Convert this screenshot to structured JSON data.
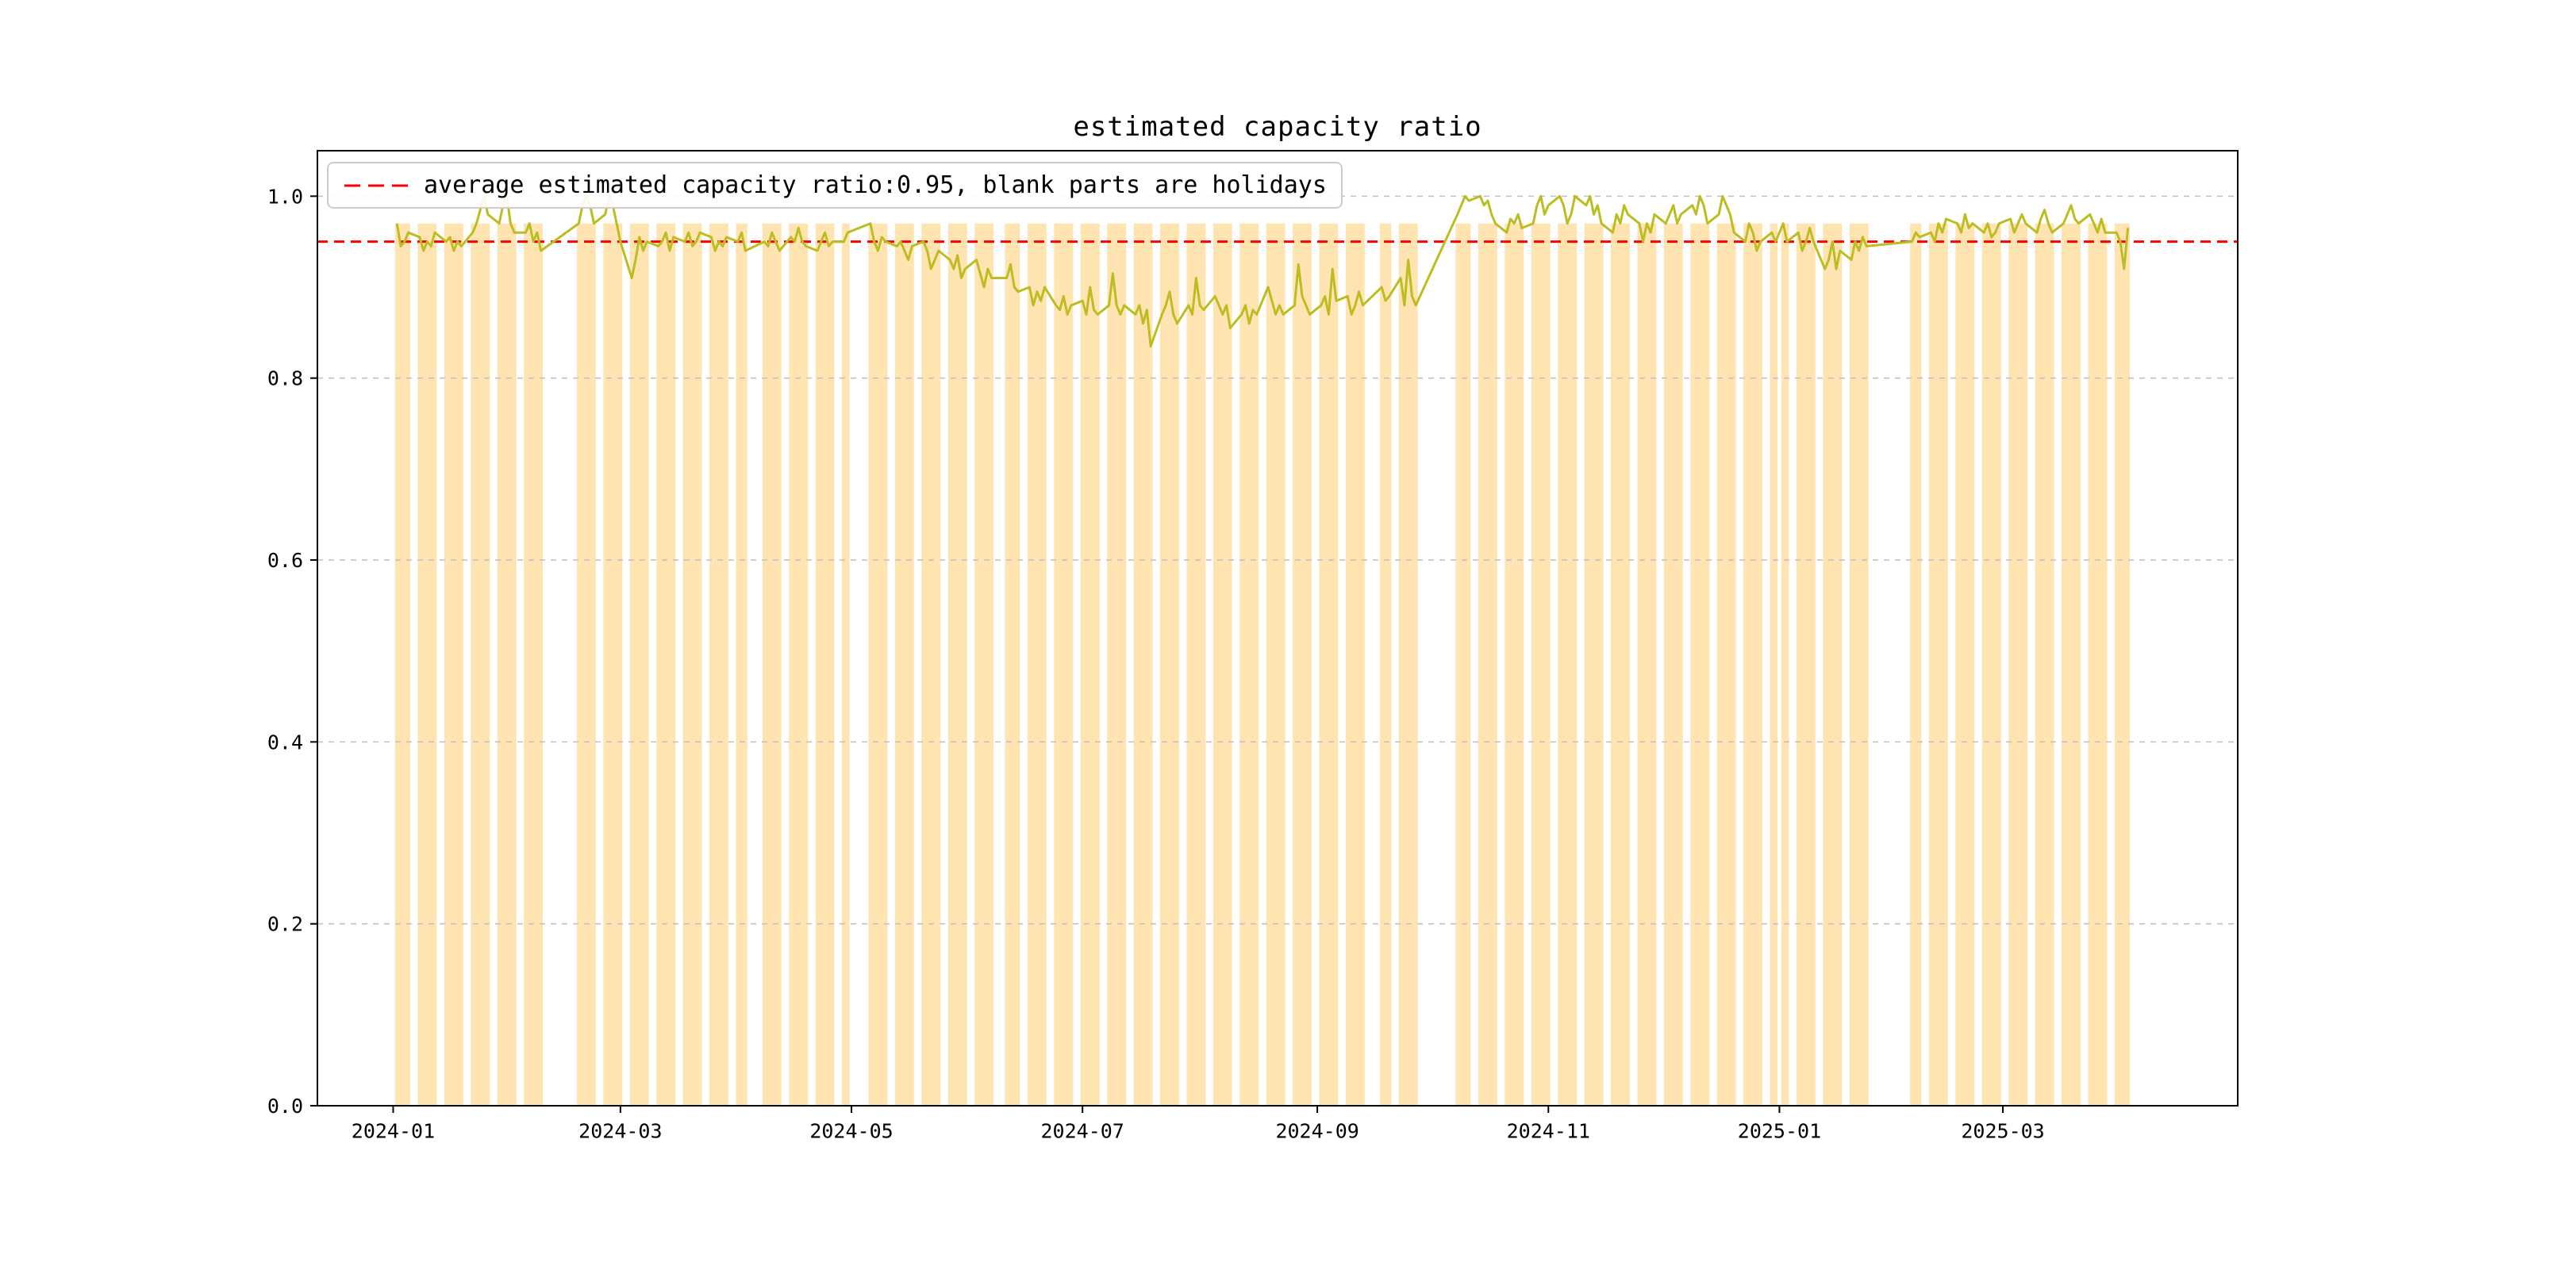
{
  "chart_data": {
    "type": "line",
    "title": "estimated capacity ratio",
    "legend_label": "average estimated capacity ratio:0.95, blank parts are holidays",
    "legend_position": "upper left",
    "average_value": 0.95,
    "grid": "horizontal dashed",
    "x_unit": "days since 2024-01-01",
    "xlim": [
      -20,
      487
    ],
    "ylim": [
      0,
      1.05
    ],
    "bar_top": 0.97,
    "yticks": {
      "values": [
        0.0,
        0.2,
        0.4,
        0.6,
        0.8,
        1.0
      ],
      "labels": [
        "0.0",
        "0.2",
        "0.4",
        "0.6",
        "0.8",
        "1.0"
      ]
    },
    "xticks": [
      {
        "pos": 0,
        "label": "2024-01"
      },
      {
        "pos": 60,
        "label": "2024-03"
      },
      {
        "pos": 121,
        "label": "2024-05"
      },
      {
        "pos": 182,
        "label": "2024-07"
      },
      {
        "pos": 244,
        "label": "2024-09"
      },
      {
        "pos": 305,
        "label": "2024-11"
      },
      {
        "pos": 366,
        "label": "2025-01"
      },
      {
        "pos": 425,
        "label": "2025-03"
      }
    ],
    "colors": {
      "bar_fill": "rgba(255,165,0,0.3)",
      "line": "#bcbd22",
      "average_line": "#ff0000",
      "grid": "#bfbfbf",
      "axis": "#000000",
      "legend_border": "#cccccc"
    },
    "series_name": "estimated capacity ratio",
    "work_blocks_note": "each block = consecutive working days (start = day offset from 2024-01-01, Mon=0 mod 7); blanks between blocks are weekends/holidays",
    "work_blocks": [
      {
        "start": 1,
        "values": [
          0.97,
          0.945,
          0.95,
          0.96
        ]
      },
      {
        "start": 7,
        "values": [
          0.955,
          0.94,
          0.95,
          0.945,
          0.96
        ]
      },
      {
        "start": 14,
        "values": [
          0.95,
          0.955,
          0.94,
          0.95,
          0.945
        ]
      },
      {
        "start": 21,
        "values": [
          0.96,
          0.97,
          0.985,
          1.0,
          0.98
        ]
      },
      {
        "start": 28,
        "values": [
          0.97,
          0.99,
          1.0,
          0.97,
          0.96
        ]
      },
      {
        "start": 35,
        "values": [
          0.96,
          0.97,
          0.95,
          0.96,
          0.94
        ]
      },
      {
        "start": 49,
        "values": [
          0.97,
          0.99,
          1.0,
          0.99,
          0.97
        ]
      },
      {
        "start": 56,
        "values": [
          0.98,
          1.0,
          0.99,
          0.97,
          0.95
        ]
      },
      {
        "start": 63,
        "values": [
          0.91,
          0.93,
          0.955,
          0.94,
          0.95
        ]
      },
      {
        "start": 70,
        "values": [
          0.945,
          0.95,
          0.96,
          0.94,
          0.955
        ]
      },
      {
        "start": 77,
        "values": [
          0.95,
          0.96,
          0.945,
          0.95,
          0.96
        ]
      },
      {
        "start": 84,
        "values": [
          0.955,
          0.94,
          0.95,
          0.945,
          0.955
        ]
      },
      {
        "start": 91,
        "values": [
          0.95,
          0.96,
          0.94
        ]
      },
      {
        "start": 98,
        "values": [
          0.95,
          0.945,
          0.96,
          0.95,
          0.94
        ]
      },
      {
        "start": 105,
        "values": [
          0.955,
          0.95,
          0.965,
          0.95,
          0.945
        ]
      },
      {
        "start": 112,
        "values": [
          0.94,
          0.95,
          0.96,
          0.945,
          0.95
        ]
      },
      {
        "start": 119,
        "values": [
          0.95,
          0.96
        ]
      },
      {
        "start": 126,
        "values": [
          0.97,
          0.95,
          0.94,
          0.955,
          0.95
        ]
      },
      {
        "start": 133,
        "values": [
          0.945,
          0.95,
          0.94,
          0.93,
          0.945
        ]
      },
      {
        "start": 140,
        "values": [
          0.95,
          0.94,
          0.92,
          0.93,
          0.94
        ]
      },
      {
        "start": 147,
        "values": [
          0.93,
          0.92,
          0.935,
          0.91,
          0.92
        ]
      },
      {
        "start": 154,
        "values": [
          0.93,
          0.915,
          0.9,
          0.92,
          0.91
        ]
      },
      {
        "start": 162,
        "values": [
          0.91,
          0.925,
          0.9,
          0.895
        ]
      },
      {
        "start": 168,
        "values": [
          0.9,
          0.88,
          0.895,
          0.885,
          0.9
        ]
      },
      {
        "start": 175,
        "values": [
          0.88,
          0.875,
          0.89,
          0.87,
          0.88
        ]
      },
      {
        "start": 182,
        "values": [
          0.885,
          0.87,
          0.9,
          0.875,
          0.87
        ]
      },
      {
        "start": 189,
        "values": [
          0.88,
          0.915,
          0.88,
          0.87,
          0.88
        ]
      },
      {
        "start": 196,
        "values": [
          0.87,
          0.88,
          0.86,
          0.875,
          0.835
        ]
      },
      {
        "start": 203,
        "values": [
          0.87,
          0.88,
          0.895,
          0.87,
          0.86
        ]
      },
      {
        "start": 210,
        "values": [
          0.88,
          0.87,
          0.91,
          0.88,
          0.875
        ]
      },
      {
        "start": 217,
        "values": [
          0.89,
          0.88,
          0.87,
          0.88,
          0.855
        ]
      },
      {
        "start": 224,
        "values": [
          0.87,
          0.88,
          0.86,
          0.875,
          0.87
        ]
      },
      {
        "start": 231,
        "values": [
          0.9,
          0.885,
          0.87,
          0.88,
          0.87
        ]
      },
      {
        "start": 238,
        "values": [
          0.88,
          0.925,
          0.89,
          0.88,
          0.87
        ]
      },
      {
        "start": 245,
        "values": [
          0.88,
          0.89,
          0.87,
          0.92,
          0.885
        ]
      },
      {
        "start": 252,
        "values": [
          0.89,
          0.87,
          0.88,
          0.895,
          0.88
        ]
      },
      {
        "start": 261,
        "values": [
          0.9,
          0.885,
          0.89
        ]
      },
      {
        "start": 266,
        "values": [
          0.91,
          0.88,
          0.93,
          0.89,
          0.88
        ]
      },
      {
        "start": 281,
        "values": [
          0.98,
          0.99,
          1.0,
          0.995
        ]
      },
      {
        "start": 287,
        "values": [
          1.0,
          0.99,
          0.995,
          0.98,
          0.97
        ]
      },
      {
        "start": 294,
        "values": [
          0.96,
          0.975,
          0.97,
          0.98,
          0.965
        ]
      },
      {
        "start": 301,
        "values": [
          0.97,
          0.99,
          1.0,
          0.98,
          0.99
        ]
      },
      {
        "start": 308,
        "values": [
          1.0,
          0.99,
          0.97,
          0.98,
          1.0
        ]
      },
      {
        "start": 315,
        "values": [
          0.99,
          1.0,
          0.98,
          0.99,
          0.97
        ]
      },
      {
        "start": 322,
        "values": [
          0.96,
          0.98,
          0.97,
          0.99,
          0.98
        ]
      },
      {
        "start": 329,
        "values": [
          0.97,
          0.95,
          0.97,
          0.96,
          0.98
        ]
      },
      {
        "start": 336,
        "values": [
          0.97,
          0.98,
          0.99,
          0.97,
          0.98
        ]
      },
      {
        "start": 343,
        "values": [
          0.99,
          0.98,
          1.0,
          0.99,
          0.97
        ]
      },
      {
        "start": 350,
        "values": [
          0.98,
          1.0,
          0.99,
          0.98,
          0.96
        ]
      },
      {
        "start": 357,
        "values": [
          0.95,
          0.97,
          0.96,
          0.94,
          0.95
        ]
      },
      {
        "start": 364,
        "values": [
          0.96,
          0.95
        ]
      },
      {
        "start": 367,
        "values": [
          0.97,
          0.95
        ]
      },
      {
        "start": 371,
        "values": [
          0.96,
          0.94,
          0.95,
          0.965,
          0.95
        ]
      },
      {
        "start": 378,
        "values": [
          0.92,
          0.93,
          0.95,
          0.92,
          0.94
        ]
      },
      {
        "start": 385,
        "values": [
          0.93,
          0.95,
          0.94,
          0.955,
          0.945
        ]
      },
      {
        "start": 401,
        "values": [
          0.95,
          0.96,
          0.955
        ]
      },
      {
        "start": 406,
        "values": [
          0.96,
          0.95,
          0.97,
          0.96,
          0.975
        ]
      },
      {
        "start": 413,
        "values": [
          0.97,
          0.96,
          0.98,
          0.965,
          0.97
        ]
      },
      {
        "start": 420,
        "values": [
          0.96,
          0.97,
          0.955,
          0.96,
          0.97
        ]
      },
      {
        "start": 427,
        "values": [
          0.975,
          0.96,
          0.97,
          0.98,
          0.97
        ]
      },
      {
        "start": 434,
        "values": [
          0.96,
          0.975,
          0.985,
          0.97,
          0.96
        ]
      },
      {
        "start": 441,
        "values": [
          0.97,
          0.98,
          0.99,
          0.975,
          0.97
        ]
      },
      {
        "start": 448,
        "values": [
          0.98,
          0.97,
          0.96,
          0.975,
          0.96
        ]
      },
      {
        "start": 455,
        "values": [
          0.96,
          0.95,
          0.92,
          0.965
        ]
      }
    ]
  }
}
